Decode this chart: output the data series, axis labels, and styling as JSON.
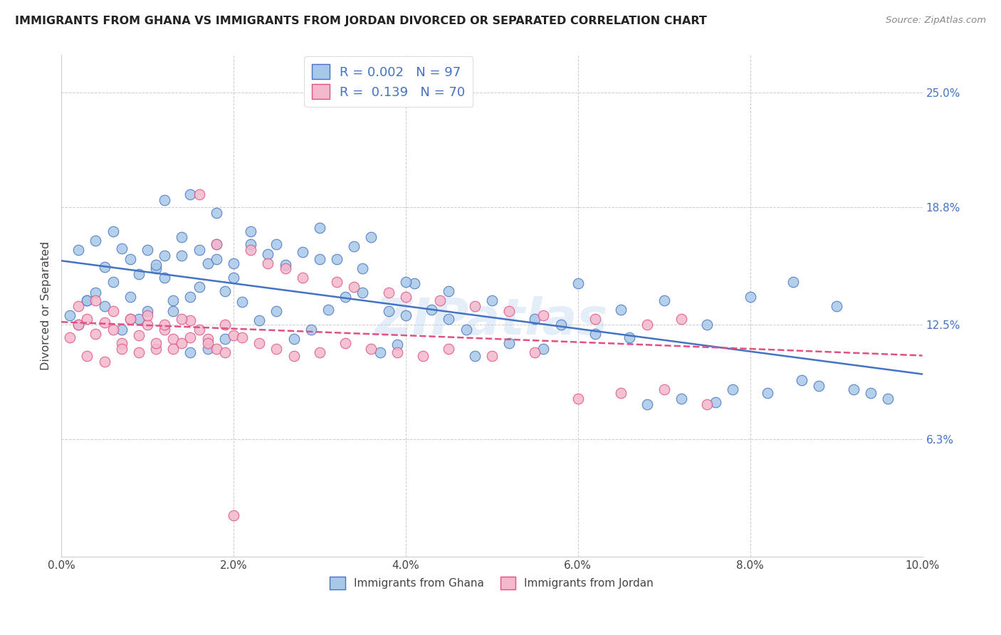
{
  "title": "IMMIGRANTS FROM GHANA VS IMMIGRANTS FROM JORDAN DIVORCED OR SEPARATED CORRELATION CHART",
  "source": "Source: ZipAtlas.com",
  "ylabel_label": "Divorced or Separated",
  "legend_label1": "Immigrants from Ghana",
  "legend_label2": "Immigrants from Jordan",
  "R1": "0.002",
  "N1": "97",
  "R2": "0.139",
  "N2": "70",
  "color_ghana": "#a8c8e8",
  "color_jordan": "#f4b8cc",
  "line_color_ghana": "#4472c4",
  "line_color_jordan": "#e05080",
  "background_color": "#ffffff",
  "xlim": [
    0.0,
    0.1
  ],
  "ylim": [
    0.0,
    0.27
  ],
  "yticks": [
    0.063,
    0.125,
    0.188,
    0.25
  ],
  "ytick_labels": [
    "6.3%",
    "12.5%",
    "18.8%",
    "25.0%"
  ],
  "xticks": [
    0.0,
    0.02,
    0.04,
    0.06,
    0.08,
    0.1
  ],
  "xtick_labels": [
    "0.0%",
    "2.0%",
    "4.0%",
    "6.0%",
    "8.0%",
    "10.0%"
  ],
  "ghana_x": [
    0.001,
    0.002,
    0.003,
    0.004,
    0.005,
    0.006,
    0.007,
    0.008,
    0.009,
    0.01,
    0.011,
    0.012,
    0.013,
    0.014,
    0.015,
    0.016,
    0.017,
    0.018,
    0.019,
    0.02,
    0.002,
    0.004,
    0.006,
    0.008,
    0.01,
    0.012,
    0.014,
    0.016,
    0.018,
    0.02,
    0.022,
    0.024,
    0.026,
    0.028,
    0.03,
    0.032,
    0.034,
    0.036,
    0.038,
    0.04,
    0.003,
    0.005,
    0.007,
    0.009,
    0.011,
    0.013,
    0.015,
    0.017,
    0.019,
    0.021,
    0.023,
    0.025,
    0.027,
    0.029,
    0.031,
    0.033,
    0.035,
    0.037,
    0.039,
    0.041,
    0.043,
    0.045,
    0.047,
    0.05,
    0.055,
    0.06,
    0.065,
    0.07,
    0.075,
    0.08,
    0.085,
    0.09,
    0.048,
    0.052,
    0.056,
    0.058,
    0.062,
    0.066,
    0.068,
    0.072,
    0.076,
    0.078,
    0.082,
    0.086,
    0.088,
    0.092,
    0.094,
    0.096,
    0.012,
    0.015,
    0.018,
    0.022,
    0.025,
    0.03,
    0.035,
    0.04,
    0.045
  ],
  "ghana_y": [
    0.13,
    0.125,
    0.138,
    0.142,
    0.135,
    0.148,
    0.122,
    0.14,
    0.128,
    0.132,
    0.155,
    0.15,
    0.138,
    0.162,
    0.14,
    0.145,
    0.158,
    0.168,
    0.143,
    0.15,
    0.165,
    0.17,
    0.175,
    0.16,
    0.165,
    0.162,
    0.172,
    0.165,
    0.16,
    0.158,
    0.168,
    0.163,
    0.157,
    0.164,
    0.177,
    0.16,
    0.167,
    0.172,
    0.132,
    0.13,
    0.138,
    0.156,
    0.166,
    0.152,
    0.157,
    0.132,
    0.11,
    0.112,
    0.117,
    0.137,
    0.127,
    0.132,
    0.117,
    0.122,
    0.133,
    0.14,
    0.142,
    0.11,
    0.114,
    0.147,
    0.133,
    0.128,
    0.122,
    0.138,
    0.128,
    0.147,
    0.133,
    0.138,
    0.125,
    0.14,
    0.148,
    0.135,
    0.108,
    0.115,
    0.112,
    0.125,
    0.12,
    0.118,
    0.082,
    0.085,
    0.083,
    0.09,
    0.088,
    0.095,
    0.092,
    0.09,
    0.088,
    0.085,
    0.192,
    0.195,
    0.185,
    0.175,
    0.168,
    0.16,
    0.155,
    0.148,
    0.143
  ],
  "jordan_x": [
    0.001,
    0.002,
    0.003,
    0.004,
    0.005,
    0.006,
    0.007,
    0.008,
    0.009,
    0.01,
    0.011,
    0.012,
    0.013,
    0.014,
    0.015,
    0.016,
    0.017,
    0.018,
    0.019,
    0.02,
    0.002,
    0.004,
    0.006,
    0.008,
    0.01,
    0.012,
    0.014,
    0.003,
    0.005,
    0.007,
    0.009,
    0.011,
    0.013,
    0.015,
    0.017,
    0.019,
    0.021,
    0.023,
    0.025,
    0.027,
    0.03,
    0.033,
    0.036,
    0.039,
    0.042,
    0.045,
    0.05,
    0.055,
    0.06,
    0.065,
    0.07,
    0.075,
    0.016,
    0.018,
    0.022,
    0.024,
    0.026,
    0.028,
    0.032,
    0.034,
    0.038,
    0.04,
    0.044,
    0.048,
    0.052,
    0.056,
    0.062,
    0.068,
    0.072,
    0.02
  ],
  "jordan_y": [
    0.118,
    0.125,
    0.128,
    0.12,
    0.126,
    0.122,
    0.115,
    0.128,
    0.119,
    0.125,
    0.112,
    0.122,
    0.117,
    0.115,
    0.127,
    0.122,
    0.117,
    0.112,
    0.125,
    0.119,
    0.135,
    0.138,
    0.132,
    0.128,
    0.13,
    0.125,
    0.128,
    0.108,
    0.105,
    0.112,
    0.11,
    0.115,
    0.112,
    0.118,
    0.115,
    0.11,
    0.118,
    0.115,
    0.112,
    0.108,
    0.11,
    0.115,
    0.112,
    0.11,
    0.108,
    0.112,
    0.108,
    0.11,
    0.085,
    0.088,
    0.09,
    0.082,
    0.195,
    0.168,
    0.165,
    0.158,
    0.155,
    0.15,
    0.148,
    0.145,
    0.142,
    0.14,
    0.138,
    0.135,
    0.132,
    0.13,
    0.128,
    0.125,
    0.128,
    0.022
  ]
}
